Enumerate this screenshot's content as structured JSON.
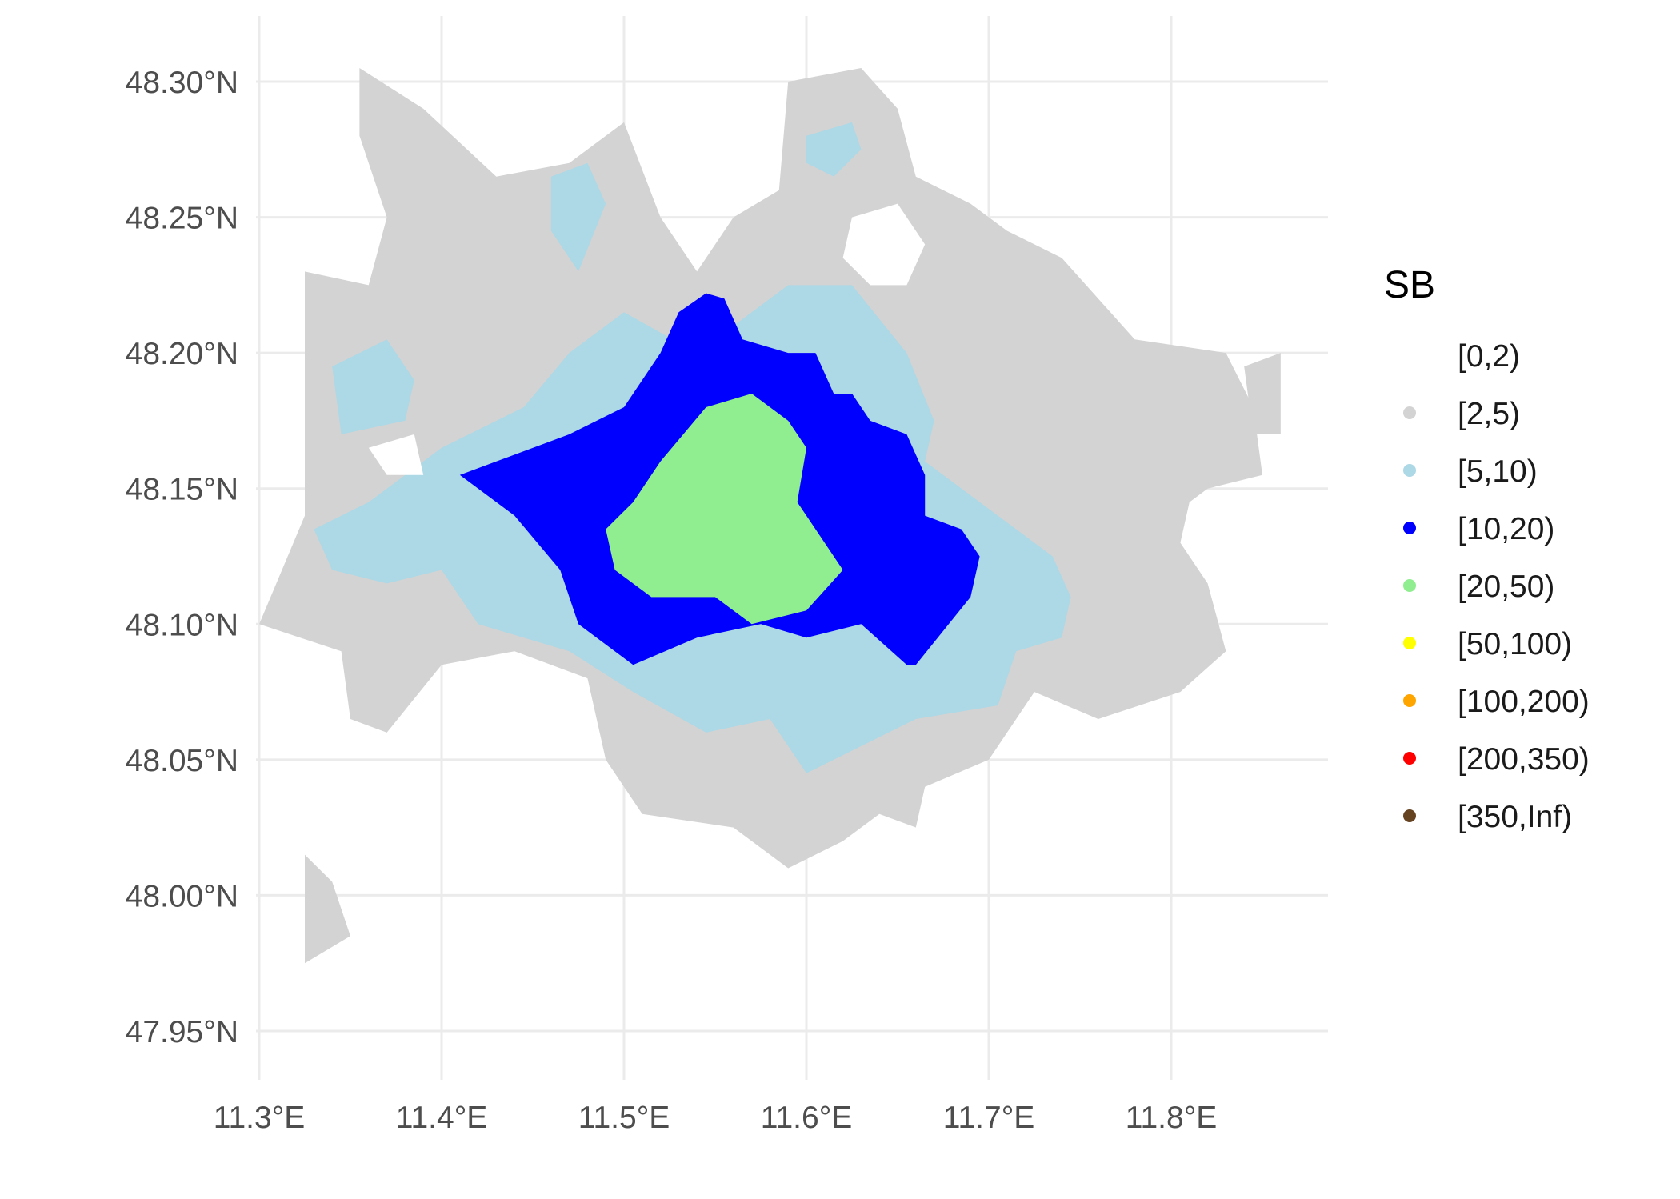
{
  "chart_data": {
    "type": "heatmap",
    "legend": {
      "title": "SB",
      "position": "right",
      "entries": [
        {
          "label": "[0,2)",
          "color": "#ffffff"
        },
        {
          "label": "[2,5)",
          "color": "#d3d3d3"
        },
        {
          "label": "[5,10)",
          "color": "#add8e6"
        },
        {
          "label": "[10,20)",
          "color": "#0000ff"
        },
        {
          "label": "[20,50)",
          "color": "#90ee90"
        },
        {
          "label": "[50,100)",
          "color": "#ffff00"
        },
        {
          "label": "[100,200)",
          "color": "#ffa500"
        },
        {
          "label": "[200,350)",
          "color": "#ff0000"
        },
        {
          "label": "[350,Inf)",
          "color": "#654321"
        }
      ]
    },
    "x_axis": {
      "ticks": [
        11.3,
        11.4,
        11.5,
        11.6,
        11.7,
        11.8
      ],
      "tick_labels": [
        "11.3°E",
        "11.4°E",
        "11.5°E",
        "11.6°E",
        "11.7°E",
        "11.8°E"
      ]
    },
    "y_axis": {
      "ticks": [
        48.3,
        48.25,
        48.2,
        48.15,
        48.1,
        48.05,
        48.0,
        47.95
      ],
      "tick_labels": [
        "48.30°N",
        "48.25°N",
        "48.20°N",
        "48.15°N",
        "48.10°N",
        "48.05°N",
        "48.00°N",
        "47.95°N"
      ]
    },
    "grid": true,
    "regions": [
      {
        "class": "[2,5)",
        "color": "#d3d3d3",
        "lonlat": [
          [
            11.355,
            48.305
          ],
          [
            11.39,
            48.29
          ],
          [
            11.43,
            48.265
          ],
          [
            11.47,
            48.27
          ],
          [
            11.5,
            48.285
          ],
          [
            11.52,
            48.25
          ],
          [
            11.54,
            48.23
          ],
          [
            11.56,
            48.25
          ],
          [
            11.585,
            48.26
          ],
          [
            11.59,
            48.3
          ],
          [
            11.63,
            48.305
          ],
          [
            11.65,
            48.29
          ],
          [
            11.66,
            48.265
          ],
          [
            11.69,
            48.255
          ],
          [
            11.71,
            48.245
          ],
          [
            11.74,
            48.235
          ],
          [
            11.78,
            48.205
          ],
          [
            11.83,
            48.2
          ],
          [
            11.845,
            48.18
          ],
          [
            11.85,
            48.155
          ],
          [
            11.82,
            48.15
          ],
          [
            11.81,
            48.145
          ],
          [
            11.805,
            48.13
          ],
          [
            11.82,
            48.115
          ],
          [
            11.83,
            48.09
          ],
          [
            11.805,
            48.075
          ],
          [
            11.76,
            48.065
          ],
          [
            11.725,
            48.075
          ],
          [
            11.7,
            48.05
          ],
          [
            11.665,
            48.04
          ],
          [
            11.66,
            48.025
          ],
          [
            11.64,
            48.03
          ],
          [
            11.62,
            48.02
          ],
          [
            11.59,
            48.01
          ],
          [
            11.56,
            48.025
          ],
          [
            11.51,
            48.03
          ],
          [
            11.49,
            48.05
          ],
          [
            11.48,
            48.08
          ],
          [
            11.44,
            48.09
          ],
          [
            11.4,
            48.085
          ],
          [
            11.37,
            48.06
          ],
          [
            11.35,
            48.065
          ],
          [
            11.345,
            48.09
          ],
          [
            11.3,
            48.1
          ],
          [
            11.325,
            48.14
          ],
          [
            11.325,
            48.23
          ],
          [
            11.36,
            48.225
          ],
          [
            11.37,
            48.25
          ],
          [
            11.355,
            48.28
          ]
        ]
      },
      {
        "class": "[2,5)",
        "color": "#d3d3d3",
        "lonlat": [
          [
            11.325,
            48.015
          ],
          [
            11.34,
            48.005
          ],
          [
            11.35,
            47.985
          ],
          [
            11.325,
            47.975
          ]
        ]
      },
      {
        "class": "[2,5)",
        "color": "#d3d3d3",
        "lonlat": [
          [
            11.84,
            48.195
          ],
          [
            11.86,
            48.2
          ],
          [
            11.86,
            48.17
          ],
          [
            11.845,
            48.17
          ]
        ]
      },
      {
        "class": "[5,10)",
        "color": "#add8e6",
        "lonlat": [
          [
            11.5,
            48.215
          ],
          [
            11.54,
            48.2
          ],
          [
            11.56,
            48.21
          ],
          [
            11.59,
            48.225
          ],
          [
            11.625,
            48.225
          ],
          [
            11.655,
            48.2
          ],
          [
            11.67,
            48.175
          ],
          [
            11.665,
            48.16
          ],
          [
            11.705,
            48.14
          ],
          [
            11.735,
            48.125
          ],
          [
            11.745,
            48.11
          ],
          [
            11.74,
            48.095
          ],
          [
            11.715,
            48.09
          ],
          [
            11.705,
            48.07
          ],
          [
            11.66,
            48.065
          ],
          [
            11.63,
            48.055
          ],
          [
            11.6,
            48.045
          ],
          [
            11.58,
            48.065
          ],
          [
            11.545,
            48.06
          ],
          [
            11.505,
            48.075
          ],
          [
            11.47,
            48.09
          ],
          [
            11.42,
            48.1
          ],
          [
            11.4,
            48.12
          ],
          [
            11.37,
            48.115
          ],
          [
            11.34,
            48.12
          ],
          [
            11.33,
            48.135
          ],
          [
            11.36,
            48.145
          ],
          [
            11.4,
            48.165
          ],
          [
            11.445,
            48.18
          ],
          [
            11.47,
            48.2
          ]
        ]
      },
      {
        "class": "[5,10)",
        "color": "#add8e6",
        "lonlat": [
          [
            11.34,
            48.195
          ],
          [
            11.37,
            48.205
          ],
          [
            11.385,
            48.19
          ],
          [
            11.38,
            48.175
          ],
          [
            11.345,
            48.17
          ]
        ]
      },
      {
        "class": "[5,10)",
        "color": "#add8e6",
        "lonlat": [
          [
            11.46,
            48.265
          ],
          [
            11.48,
            48.27
          ],
          [
            11.49,
            48.255
          ],
          [
            11.475,
            48.23
          ],
          [
            11.46,
            48.245
          ]
        ]
      },
      {
        "class": "[5,10)",
        "color": "#add8e6",
        "lonlat": [
          [
            11.6,
            48.28
          ],
          [
            11.625,
            48.285
          ],
          [
            11.63,
            48.275
          ],
          [
            11.615,
            48.265
          ],
          [
            11.6,
            48.27
          ]
        ]
      },
      {
        "class": "[10,20)",
        "color": "#0000ff",
        "lonlat": [
          [
            11.53,
            48.215
          ],
          [
            11.545,
            48.222
          ],
          [
            11.555,
            48.22
          ],
          [
            11.565,
            48.205
          ],
          [
            11.59,
            48.2
          ],
          [
            11.605,
            48.2
          ],
          [
            11.615,
            48.185
          ],
          [
            11.625,
            48.185
          ],
          [
            11.635,
            48.175
          ],
          [
            11.655,
            48.17
          ],
          [
            11.665,
            48.155
          ],
          [
            11.665,
            48.14
          ],
          [
            11.685,
            48.135
          ],
          [
            11.695,
            48.125
          ],
          [
            11.69,
            48.11
          ],
          [
            11.66,
            48.085
          ],
          [
            11.655,
            48.085
          ],
          [
            11.63,
            48.1
          ],
          [
            11.6,
            48.095
          ],
          [
            11.575,
            48.1
          ],
          [
            11.54,
            48.095
          ],
          [
            11.505,
            48.085
          ],
          [
            11.475,
            48.1
          ],
          [
            11.465,
            48.12
          ],
          [
            11.44,
            48.14
          ],
          [
            11.41,
            48.155
          ],
          [
            11.43,
            48.16
          ],
          [
            11.47,
            48.17
          ],
          [
            11.5,
            48.18
          ],
          [
            11.52,
            48.2
          ]
        ]
      },
      {
        "class": "[20,50)",
        "color": "#90ee90",
        "lonlat": [
          [
            11.545,
            48.18
          ],
          [
            11.57,
            48.185
          ],
          [
            11.59,
            48.175
          ],
          [
            11.6,
            48.165
          ],
          [
            11.595,
            48.145
          ],
          [
            11.615,
            48.125
          ],
          [
            11.62,
            48.12
          ],
          [
            11.6,
            48.105
          ],
          [
            11.57,
            48.1
          ],
          [
            11.55,
            48.11
          ],
          [
            11.515,
            48.11
          ],
          [
            11.495,
            48.12
          ],
          [
            11.49,
            48.135
          ],
          [
            11.505,
            48.145
          ],
          [
            11.52,
            48.16
          ]
        ]
      }
    ],
    "holes": [
      {
        "lonlat": [
          [
            11.625,
            48.25
          ],
          [
            11.65,
            48.255
          ],
          [
            11.665,
            48.24
          ],
          [
            11.655,
            48.225
          ],
          [
            11.635,
            48.225
          ],
          [
            11.62,
            48.235
          ]
        ]
      },
      {
        "lonlat": [
          [
            11.36,
            48.165
          ],
          [
            11.385,
            48.17
          ],
          [
            11.39,
            48.155
          ],
          [
            11.37,
            48.155
          ]
        ]
      }
    ]
  }
}
